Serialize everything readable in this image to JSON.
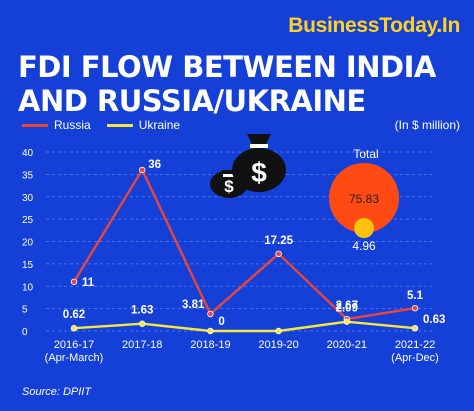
{
  "brand": "BusinessToday.In",
  "title": "FDI FLOW BETWEEN INDIA\nAND RUSSIA/UKRAINE",
  "unit_note": "(In $ million)",
  "source": "Source: DPIIT",
  "colors": {
    "background": "#1540d8",
    "russia": "#e8463a",
    "ukraine": "#f5e642",
    "total_russia_bubble": "#ff4a14",
    "total_ukraine_bubble": "#ffc20e",
    "brand": "#ffd21f"
  },
  "icons": [
    "money-bag-icon",
    "money-bag-icon"
  ],
  "total": {
    "label": "Total",
    "russia_value": "75.83",
    "ukraine_value": "4.96"
  },
  "chart_data": {
    "type": "line",
    "categories": [
      "2016-17\n(Apr-March)",
      "2017-18",
      "2018-19",
      "2019-20",
      "2020-21",
      "2021-22\n(Apr-Dec)"
    ],
    "series": [
      {
        "name": "Russia",
        "values": [
          11,
          36,
          3.81,
          17.25,
          2.67,
          5.1
        ],
        "labels": [
          "11",
          "36",
          "3.81",
          "17.25",
          "2.67",
          "5.1"
        ]
      },
      {
        "name": "Ukraine",
        "values": [
          0.62,
          1.63,
          0,
          0,
          2.09,
          0.63
        ],
        "labels": [
          "0.62",
          "1.63",
          "0",
          "",
          "2.09",
          "0.63"
        ]
      }
    ],
    "yticks": [
      "0",
      "5",
      "10",
      "15",
      "20",
      "25",
      "30",
      "35",
      "40"
    ],
    "ylim": [
      0,
      40
    ],
    "grid": "horizontal dashed",
    "legend": "top-left"
  }
}
